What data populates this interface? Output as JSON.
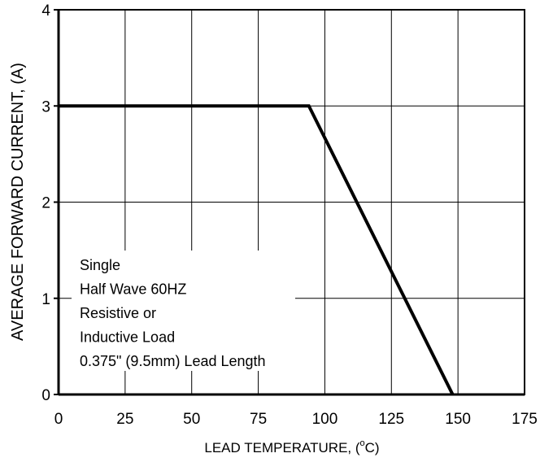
{
  "chart_data": {
    "type": "line",
    "title": "",
    "xlabel": "LEAD TEMPERATURE, (°C)",
    "xlabel_main": "LEAD TEMPERATURE, (",
    "xlabel_sup": "o",
    "xlabel_tail": "C)",
    "ylabel": "AVERAGE FORWARD CURRENT, (A)",
    "xlim": [
      0,
      175
    ],
    "ylim": [
      0,
      4
    ],
    "x_ticks": [
      "0",
      "25",
      "50",
      "75",
      "100",
      "125",
      "150",
      "175"
    ],
    "y_ticks": [
      "0",
      "1",
      "2",
      "3",
      "4"
    ],
    "grid": true,
    "series": [
      {
        "x": [
          0,
          94,
          148
        ],
        "y": [
          3,
          3,
          0
        ]
      }
    ],
    "annotation": [
      "Single",
      "Half Wave 60HZ",
      "Resistive or",
      "Inductive Load",
      "0.375\" (9.5mm) Lead Length"
    ]
  }
}
